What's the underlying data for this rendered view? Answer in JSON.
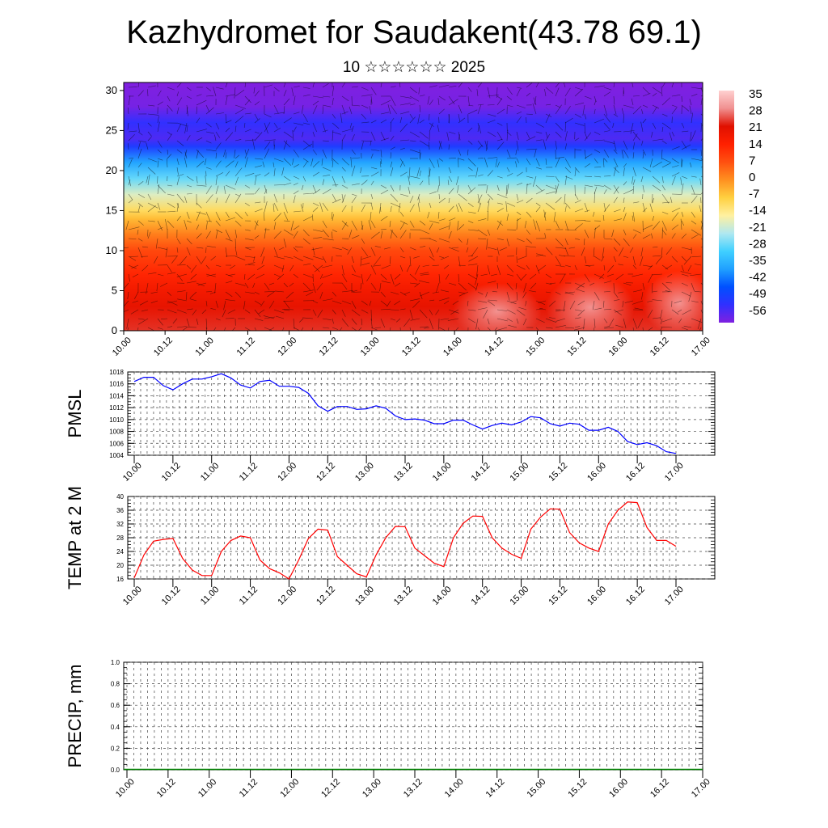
{
  "title": "Kazhydromet for Saudakent(43.78 69.1)",
  "subtitle": "10 ☆☆☆☆☆☆ 2025",
  "chart_data": [
    {
      "type": "heatmap",
      "yticks": [
        "0",
        "5",
        "10",
        "15",
        "20",
        "25",
        "30"
      ],
      "ylim": [
        0,
        31
      ],
      "xticks": [
        "10.00",
        "10.12",
        "11.00",
        "11.12",
        "12.00",
        "12.12",
        "13.00",
        "13.12",
        "14.00",
        "14.12",
        "15.00",
        "15.12",
        "16.00",
        "16.12",
        "17.00"
      ],
      "colorbar_labels": [
        "35",
        "28",
        "21",
        "14",
        "7",
        "0",
        "-7",
        "-14",
        "-21",
        "-28",
        "-35",
        "-42",
        "-49",
        "-56"
      ],
      "colorbar_range": [
        -63,
        42
      ],
      "colors": [
        "#8020e0",
        "#3030ff",
        "#0050ff",
        "#20a0ff",
        "#40d0ff",
        "#b0e8f0",
        "#fff0a0",
        "#ffd040",
        "#ff9020",
        "#ff5010",
        "#ff2000",
        "#e01000",
        "#f09090",
        "#ffd0d0"
      ],
      "profile_levels": [
        0,
        3,
        5,
        7,
        10,
        12,
        14,
        15,
        17,
        19,
        21,
        23,
        24,
        26,
        28,
        31
      ],
      "profile_values": [
        28,
        24,
        21,
        17,
        11,
        4,
        -4,
        -9,
        -18,
        -28,
        -38,
        -52,
        -58,
        -55,
        -62,
        -66
      ]
    },
    {
      "type": "line",
      "ylabel": "PMSL",
      "ylim": [
        1004,
        1018
      ],
      "yticks": [
        "1004",
        "1006",
        "1008",
        "1010",
        "1012",
        "1014",
        "1016",
        "1018"
      ],
      "xticks": [
        "10.00",
        "10.12",
        "11.00",
        "11.12",
        "12.00",
        "12.12",
        "13.00",
        "13.12",
        "14.00",
        "14.12",
        "15.00",
        "15.12",
        "16.00",
        "16.12",
        "17.00"
      ],
      "color": "#0000ff",
      "values": [
        1016.4,
        1017.1,
        1017.1,
        1015.7,
        1015.0,
        1016.0,
        1016.8,
        1016.8,
        1017.2,
        1017.7,
        1017.0,
        1015.8,
        1015.3,
        1016.4,
        1016.6,
        1015.6,
        1015.6,
        1015.4,
        1014.4,
        1012.3,
        1011.4,
        1012.2,
        1012.2,
        1011.7,
        1011.8,
        1012.3,
        1011.9,
        1010.6,
        1010.0,
        1010.1,
        1009.9,
        1009.3,
        1009.3,
        1009.9,
        1009.9,
        1009.1,
        1008.4,
        1009.0,
        1009.4,
        1009.1,
        1009.6,
        1010.5,
        1010.3,
        1009.3,
        1008.9,
        1009.4,
        1009.2,
        1008.2,
        1008.2,
        1008.7,
        1008.0,
        1006.3,
        1005.8,
        1006.1,
        1005.6,
        1004.6,
        1004.3
      ]
    },
    {
      "type": "line",
      "ylabel": "TEMP at 2 M",
      "ylim": [
        16,
        40
      ],
      "yticks": [
        "16",
        "20",
        "24",
        "28",
        "32",
        "36",
        "40"
      ],
      "xticks": [
        "10.00",
        "10.12",
        "11.00",
        "11.12",
        "12.00",
        "12.12",
        "13.00",
        "13.12",
        "14.00",
        "14.12",
        "15.00",
        "15.12",
        "16.00",
        "16.12",
        "17.00"
      ],
      "color": "#ff0000",
      "values": [
        16.3,
        23.0,
        27.0,
        27.5,
        27.8,
        22.0,
        18.6,
        17.0,
        17.0,
        24.0,
        27.2,
        28.5,
        28.0,
        21.5,
        19.0,
        17.8,
        16.0,
        21.5,
        27.8,
        30.5,
        30.2,
        22.5,
        20.0,
        17.5,
        16.6,
        23.0,
        28.0,
        31.3,
        31.2,
        25.0,
        22.8,
        20.6,
        19.6,
        28.0,
        32.2,
        34.3,
        34.2,
        28.0,
        25.0,
        23.2,
        22.0,
        30.5,
        34.0,
        36.4,
        36.3,
        29.5,
        26.5,
        25.0,
        24.0,
        32.0,
        36.0,
        38.4,
        38.2,
        31.0,
        27.2,
        27.2,
        25.5
      ]
    },
    {
      "type": "bar",
      "ylabel": "PRECIP, mm",
      "ylim": [
        0,
        1
      ],
      "yticks": [
        "0.0",
        "0.2",
        "0.4",
        "0.6",
        "0.8",
        "1.0"
      ],
      "xticks": [
        "10.00",
        "10.12",
        "11.00",
        "11.12",
        "12.00",
        "12.12",
        "13.00",
        "13.12",
        "14.00",
        "14.12",
        "15.00",
        "15.12",
        "16.00",
        "16.12",
        "17.00"
      ],
      "color": "#008000",
      "values": []
    }
  ]
}
